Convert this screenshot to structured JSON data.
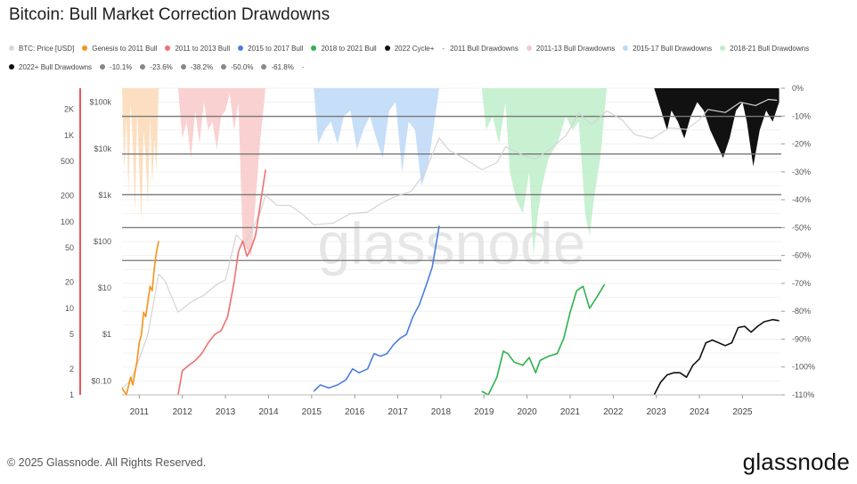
{
  "title": "Bitcoin: Bull Market Correction Drawdowns",
  "footer": "© 2025 Glassnode. All Rights Reserved.",
  "brand": "glassnode",
  "watermark": "glassnode",
  "legend": [
    {
      "label": "BTC: Price [USD]",
      "color": "#d9d9d9",
      "kind": "dot"
    },
    {
      "label": "Genesis to 2011 Bull",
      "color": "#f7931a",
      "kind": "dot"
    },
    {
      "label": "2011 to 2013 Bull",
      "color": "#f07070",
      "kind": "dot"
    },
    {
      "label": "2015 to 2017 Bull",
      "color": "#4a7fe0",
      "kind": "dot"
    },
    {
      "label": "2018 to 2021 Bull",
      "color": "#2db34a",
      "kind": "dot"
    },
    {
      "label": "2022 Cycle+",
      "color": "#111111",
      "kind": "dot"
    },
    {
      "label": "2011 Bull Drawdowns",
      "color": "#fbd9b5",
      "kind": "dash"
    },
    {
      "label": "2011-13 Bull Drawdowns",
      "color": "#f9c9c9",
      "kind": "dot"
    },
    {
      "label": "2015-17 Bull Drawdowns",
      "color": "#bcd8f7",
      "kind": "dot"
    },
    {
      "label": "2018-21 Bull Drawdowns",
      "color": "#bdeec9",
      "kind": "dot"
    },
    {
      "label": "2022+ Bull Drawdowns",
      "color": "#111111",
      "kind": "dot"
    },
    {
      "label": "-10.1%",
      "color": "#888888",
      "kind": "dot"
    },
    {
      "label": "-23.6%",
      "color": "#888888",
      "kind": "dot"
    },
    {
      "label": "-38.2%",
      "color": "#888888",
      "kind": "dot"
    },
    {
      "label": "-50.0%",
      "color": "#888888",
      "kind": "dot"
    },
    {
      "label": "-61.8%",
      "color": "#888888",
      "kind": "dot"
    },
    {
      "label": "",
      "color": "#888888",
      "kind": "dash"
    }
  ],
  "chart_data": {
    "type": "line",
    "title": "Bitcoin: Bull Market Correction Drawdowns",
    "x_ticks": [
      "2011",
      "2012",
      "2013",
      "2014",
      "2015",
      "2016",
      "2017",
      "2018",
      "2019",
      "2020",
      "2021",
      "2022",
      "2023",
      "2024",
      "2025"
    ],
    "xlim": [
      2010.6,
      2025.9
    ],
    "y_left_outer": {
      "ticks": [
        {
          "v": 1,
          "label": "1"
        },
        {
          "v": 2,
          "label": "2"
        },
        {
          "v": 5,
          "label": "5"
        },
        {
          "v": 10,
          "label": "10"
        },
        {
          "v": 20,
          "label": "20"
        },
        {
          "v": 50,
          "label": "50"
        },
        {
          "v": 100,
          "label": "100"
        },
        {
          "v": 200,
          "label": "200"
        },
        {
          "v": 500,
          "label": "500"
        },
        {
          "v": 1000,
          "label": "1K"
        },
        {
          "v": 2000,
          "label": "2K"
        }
      ],
      "range": [
        1,
        3500
      ],
      "scale": "log"
    },
    "y_left_price": {
      "ticks": [
        {
          "v": 0.1,
          "label": "$0.10"
        },
        {
          "v": 1,
          "label": "$1"
        },
        {
          "v": 10,
          "label": "$10"
        },
        {
          "v": 100,
          "label": "$100"
        },
        {
          "v": 1000,
          "label": "$1k"
        },
        {
          "v": 10000,
          "label": "$10k"
        },
        {
          "v": 100000,
          "label": "$100k"
        }
      ],
      "range": [
        0.05,
        200000
      ],
      "scale": "log"
    },
    "y_right_drawdown": {
      "ticks": [
        0,
        -10,
        -20,
        -30,
        -40,
        -50,
        -60,
        -70,
        -80,
        -90,
        -100,
        -110
      ],
      "tick_labels": [
        "0%",
        "-10%",
        "-20%",
        "-30%",
        "-40%",
        "-50%",
        "-60%",
        "-70%",
        "-80%",
        "-90%",
        "-100%",
        "-110%"
      ],
      "range": [
        -110,
        0
      ]
    },
    "reference_levels": [
      -10.1,
      -23.6,
      -38.2,
      -50.0,
      -61.8
    ],
    "series": [
      {
        "name": "BTC: Price [USD]",
        "color": "#d4d4d4",
        "axis": "price",
        "x": [
          2010.6,
          2010.8,
          2011.0,
          2011.2,
          2011.45,
          2011.6,
          2011.9,
          2012.2,
          2012.5,
          2012.8,
          2013.0,
          2013.25,
          2013.45,
          2013.8,
          2013.93,
          2014.2,
          2014.5,
          2014.8,
          2015.05,
          2015.5,
          2015.9,
          2016.3,
          2016.6,
          2016.9,
          2017.3,
          2017.6,
          2017.96,
          2018.2,
          2018.5,
          2018.95,
          2019.3,
          2019.5,
          2019.9,
          2020.2,
          2020.5,
          2020.9,
          2021.2,
          2021.5,
          2021.85,
          2022.2,
          2022.5,
          2022.9,
          2023.3,
          2023.7,
          2024.0,
          2024.2,
          2024.6,
          2024.95,
          2025.3,
          2025.6,
          2025.8
        ],
        "y": [
          0.07,
          0.1,
          0.3,
          1,
          20,
          14,
          3,
          5,
          7,
          12,
          15,
          140,
          90,
          400,
          1000,
          600,
          600,
          380,
          230,
          250,
          400,
          430,
          650,
          900,
          1200,
          2700,
          17000,
          9000,
          6500,
          3500,
          5000,
          11000,
          7300,
          6000,
          9300,
          19000,
          58000,
          33000,
          65000,
          42000,
          20000,
          16500,
          28000,
          26000,
          42000,
          70000,
          60000,
          100000,
          85000,
          115000,
          110000
        ]
      },
      {
        "name": "Genesis to 2011 Bull",
        "color": "#f7931a",
        "axis": "multiple",
        "x": [
          2010.6,
          2010.7,
          2010.8,
          2010.85,
          2010.95,
          2011.0,
          2011.05,
          2011.1,
          2011.15,
          2011.2,
          2011.25,
          2011.3,
          2011.35,
          2011.4,
          2011.45
        ],
        "y": [
          1.2,
          1.0,
          1.6,
          1.3,
          2.5,
          4,
          5,
          9,
          8,
          12,
          18,
          16,
          30,
          45,
          60
        ]
      },
      {
        "name": "2011 to 2013 Bull",
        "color": "#f07070",
        "axis": "multiple",
        "x": [
          2011.9,
          2012.0,
          2012.15,
          2012.3,
          2012.45,
          2012.6,
          2012.75,
          2012.9,
          2013.05,
          2013.2,
          2013.3,
          2013.4,
          2013.5,
          2013.6,
          2013.7,
          2013.8,
          2013.93
        ],
        "y": [
          1.0,
          1.9,
          2.2,
          2.5,
          3,
          4,
          5,
          5.5,
          8,
          20,
          45,
          60,
          40,
          50,
          70,
          150,
          400
        ]
      },
      {
        "name": "2015 to 2017 Bull",
        "color": "#4a7fe0",
        "axis": "multiple",
        "x": [
          2015.05,
          2015.2,
          2015.4,
          2015.6,
          2015.8,
          2015.95,
          2016.1,
          2016.3,
          2016.45,
          2016.6,
          2016.75,
          2016.9,
          2017.05,
          2017.2,
          2017.35,
          2017.5,
          2017.65,
          2017.8,
          2017.96
        ],
        "y": [
          1.1,
          1.3,
          1.2,
          1.3,
          1.5,
          2.0,
          1.8,
          2.0,
          3.0,
          2.8,
          3.0,
          3.8,
          4.5,
          5,
          8,
          11,
          18,
          30,
          90
        ]
      },
      {
        "name": "2018 to 2021 Bull",
        "color": "#2db34a",
        "axis": "multiple",
        "x": [
          2018.95,
          2019.1,
          2019.3,
          2019.45,
          2019.55,
          2019.7,
          2019.9,
          2020.05,
          2020.2,
          2020.3,
          2020.5,
          2020.7,
          2020.85,
          2021.0,
          2021.15,
          2021.3,
          2021.45,
          2021.6,
          2021.8
        ],
        "y": [
          1.1,
          1.0,
          1.6,
          3.2,
          3.0,
          2.4,
          2.2,
          2.7,
          1.8,
          2.5,
          2.8,
          3.0,
          4.5,
          9,
          16,
          18,
          10,
          13,
          19
        ]
      },
      {
        "name": "2022 Cycle+",
        "color": "#111111",
        "axis": "multiple",
        "x": [
          2022.95,
          2023.1,
          2023.25,
          2023.4,
          2023.55,
          2023.7,
          2023.85,
          2024.0,
          2024.15,
          2024.3,
          2024.45,
          2024.6,
          2024.75,
          2024.9,
          2025.05,
          2025.2,
          2025.35,
          2025.5,
          2025.7,
          2025.85
        ],
        "y": [
          1.0,
          1.4,
          1.7,
          1.8,
          1.8,
          1.6,
          2.2,
          2.6,
          4.0,
          4.3,
          4.0,
          3.7,
          4.0,
          6,
          6.2,
          5.3,
          6.2,
          7.0,
          7.4,
          7.2
        ]
      },
      {
        "name": "2011 Bull Drawdowns",
        "color": "#fbd9b5",
        "axis": "drawdown",
        "fill": true,
        "x": [
          2010.6,
          2010.65,
          2010.7,
          2010.75,
          2010.8,
          2010.85,
          2010.9,
          2010.95,
          2011.0,
          2011.05,
          2011.1,
          2011.15,
          2011.2,
          2011.25,
          2011.3,
          2011.35,
          2011.4,
          2011.45
        ],
        "y": [
          0,
          -30,
          -10,
          -38,
          -5,
          -20,
          -45,
          -8,
          -30,
          -48,
          -15,
          -25,
          -42,
          -10,
          -35,
          -18,
          -30,
          0
        ]
      },
      {
        "name": "2011-13 Bull Drawdowns",
        "color": "#f9c9c9",
        "axis": "drawdown",
        "fill": true,
        "x": [
          2011.9,
          2012.0,
          2012.1,
          2012.2,
          2012.3,
          2012.4,
          2012.5,
          2012.6,
          2012.7,
          2012.8,
          2012.9,
          2013.0,
          2013.1,
          2013.2,
          2013.3,
          2013.4,
          2013.5,
          2013.6,
          2013.7,
          2013.8,
          2013.93
        ],
        "y": [
          0,
          -18,
          -12,
          -25,
          -8,
          -20,
          -5,
          -15,
          -12,
          -22,
          -10,
          -8,
          -2,
          -15,
          -5,
          -55,
          -58,
          -60,
          -40,
          -20,
          0
        ]
      },
      {
        "name": "2015-17 Bull Drawdowns",
        "color": "#bcd8f7",
        "axis": "drawdown",
        "fill": true,
        "x": [
          2015.05,
          2015.15,
          2015.3,
          2015.45,
          2015.6,
          2015.75,
          2015.9,
          2016.05,
          2016.2,
          2016.35,
          2016.5,
          2016.65,
          2016.8,
          2016.95,
          2017.1,
          2017.25,
          2017.4,
          2017.55,
          2017.7,
          2017.85,
          2017.96
        ],
        "y": [
          0,
          -20,
          -15,
          -12,
          -20,
          -10,
          -8,
          -22,
          -15,
          -10,
          -18,
          -25,
          -8,
          -5,
          -30,
          -12,
          -15,
          -35,
          -28,
          -12,
          0
        ]
      },
      {
        "name": "2018-21 Bull Drawdowns",
        "color": "#bdeec9",
        "axis": "drawdown",
        "fill": true,
        "x": [
          2018.95,
          2019.05,
          2019.2,
          2019.35,
          2019.5,
          2019.6,
          2019.75,
          2019.9,
          2020.05,
          2020.15,
          2020.25,
          2020.35,
          2020.5,
          2020.7,
          2020.9,
          2021.05,
          2021.2,
          2021.35,
          2021.45,
          2021.55,
          2021.7,
          2021.85
        ],
        "y": [
          0,
          -15,
          -10,
          -20,
          -5,
          -30,
          -40,
          -45,
          -30,
          -60,
          -45,
          -35,
          -25,
          -20,
          -10,
          -15,
          -12,
          -45,
          -53,
          -40,
          -25,
          0
        ]
      },
      {
        "name": "2022+ Bull Drawdowns",
        "color": "#111111",
        "axis": "drawdown",
        "fill": true,
        "x": [
          2022.95,
          2023.05,
          2023.15,
          2023.25,
          2023.35,
          2023.5,
          2023.65,
          2023.8,
          2023.95,
          2024.1,
          2024.25,
          2024.4,
          2024.55,
          2024.7,
          2024.85,
          2025.0,
          2025.1,
          2025.25,
          2025.4,
          2025.55,
          2025.7,
          2025.85
        ],
        "y": [
          0,
          -5,
          -10,
          -15,
          -8,
          -12,
          -18,
          -10,
          -5,
          -8,
          -15,
          -20,
          -25,
          -18,
          -8,
          -5,
          -12,
          -28,
          -15,
          -8,
          -12,
          -5
        ]
      }
    ]
  }
}
